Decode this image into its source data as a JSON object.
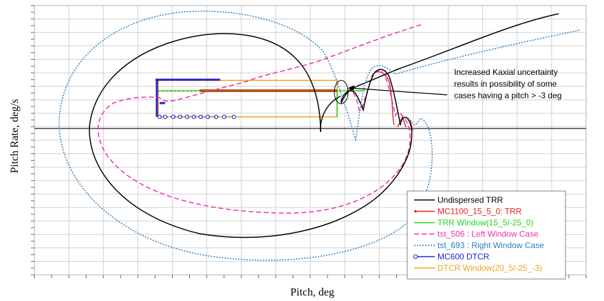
{
  "chart_data": {
    "type": "line",
    "title": "",
    "xlabel": "Pitch, deg",
    "ylabel": "Pitch Rate, deg/s",
    "grid": true,
    "tick_labels_shown": false,
    "legend_position": "bottom-right",
    "annotation": {
      "text_lines": [
        "Increased Kaxial uncertainty",
        "results in possibility of some",
        "cases having a pitch > -3 deg"
      ]
    },
    "series": [
      {
        "name": "Undispersed TRR",
        "color": "#000000",
        "style": "solid",
        "marker": "none",
        "note": "large closed spiral (outer path) plus rising branch after exit"
      },
      {
        "name": "MC1100_15_5_0: TRR",
        "color": "#e8201c",
        "style": "solid",
        "marker": "small"
      },
      {
        "name": "TRR Window(15_5/-25_0)",
        "color": "#1fd41f",
        "style": "solid",
        "marker": "none"
      },
      {
        "name": "tst_506 : Left Window Case",
        "color": "#ee2fa9",
        "style": "dashed",
        "marker": "none"
      },
      {
        "name": "tst_693 : Right Window Case",
        "color": "#2a7fbd",
        "style": "dotted",
        "marker": "none"
      },
      {
        "name": "MC600 DTCR",
        "color": "#2323c7",
        "style": "solid",
        "marker": "circle"
      },
      {
        "name": "DTCR Window(20_5/-25_-3)",
        "color": "#f0a21a",
        "style": "solid",
        "marker": "none"
      }
    ]
  }
}
